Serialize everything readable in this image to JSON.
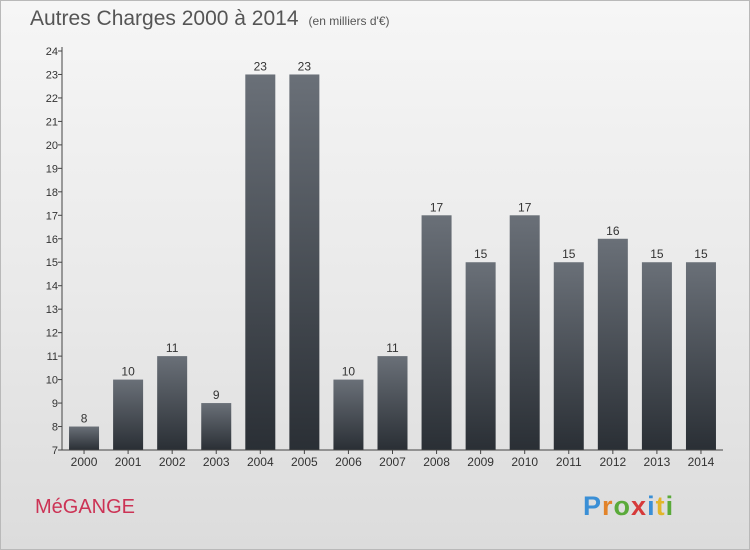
{
  "header": {
    "title": "Autres Charges 2000 à 2014",
    "subtitle": "(en milliers d'€)"
  },
  "footer": {
    "commune": "MéGANGE",
    "logo_letters": [
      "P",
      "r",
      "o",
      "x",
      "i",
      "t",
      "i"
    ],
    "logo_colors": [
      "#3a8fd6",
      "#e2832a",
      "#5aaa3a",
      "#d63a3a",
      "#3a8fd6",
      "#e2b62a",
      "#5aaa3a"
    ]
  },
  "chart_data": {
    "type": "bar",
    "categories": [
      "2000",
      "2001",
      "2002",
      "2003",
      "2004",
      "2005",
      "2006",
      "2007",
      "2008",
      "2009",
      "2010",
      "2011",
      "2012",
      "2013",
      "2014"
    ],
    "values": [
      8,
      10,
      11,
      9,
      23,
      23,
      10,
      11,
      17,
      15,
      17,
      15,
      16,
      15,
      15
    ],
    "title": "Autres Charges 2000 à 2014",
    "xlabel": "",
    "ylabel": "",
    "ylim": [
      7,
      24
    ],
    "y_ticks": [
      7,
      8,
      9,
      10,
      11,
      12,
      13,
      14,
      15,
      16,
      17,
      18,
      19,
      20,
      21,
      22,
      23,
      24
    ],
    "grid": false,
    "data_labels": true,
    "colors": {
      "bar_top": "#6a7078",
      "bar_bottom": "#2a2f35",
      "axis": "#444444",
      "text": "#333333"
    }
  }
}
